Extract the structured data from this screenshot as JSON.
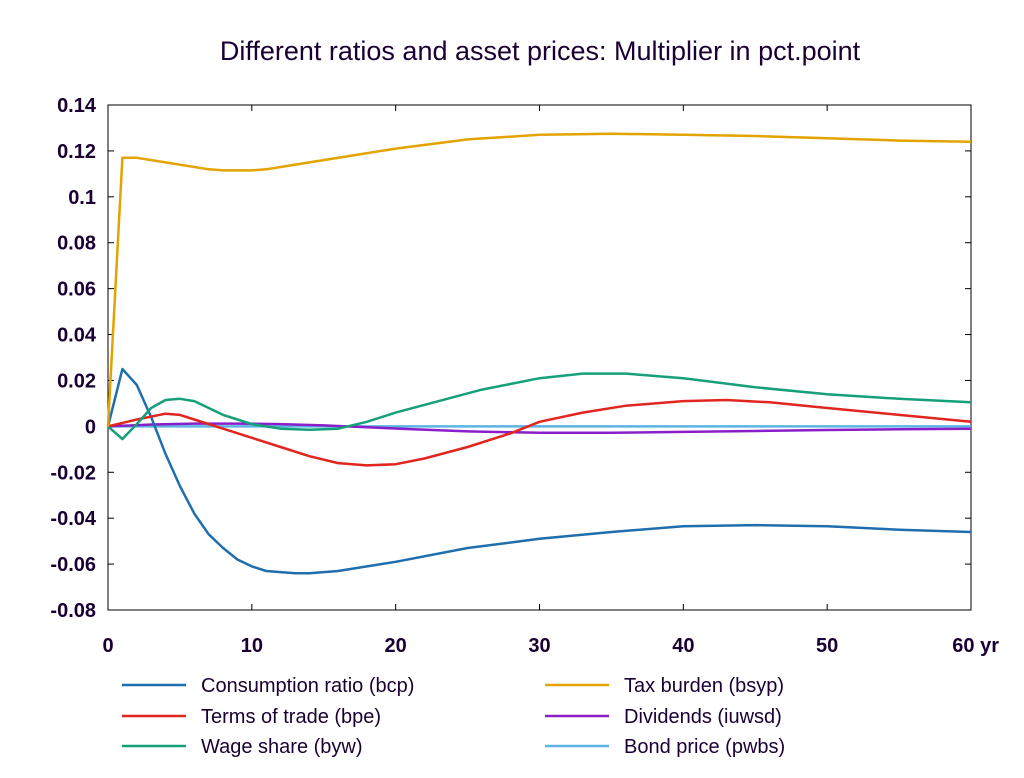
{
  "chart_data": {
    "type": "line",
    "title": "Different ratios and asset prices: Multiplier in pct.point",
    "xlabel": "",
    "ylabel": "",
    "xlim": [
      0,
      60
    ],
    "ylim": [
      -0.08,
      0.14
    ],
    "x_ticks": [
      0,
      10,
      20,
      30,
      40,
      50,
      60
    ],
    "x_tick_labels": [
      "0",
      "10",
      "20",
      "30",
      "40",
      "50",
      "60 yr"
    ],
    "y_ticks": [
      -0.08,
      -0.06,
      -0.04,
      -0.02,
      0,
      0.02,
      0.04,
      0.06,
      0.08,
      0.1,
      0.12,
      0.14
    ],
    "y_tick_labels": [
      "-0.08",
      "-0.06",
      "-0.04",
      "-0.02",
      "0",
      "0.02",
      "0.04",
      "0.06",
      "0.08",
      "0.1",
      "0.12",
      "0.14"
    ],
    "grid": false,
    "legend_position": "bottom",
    "series": [
      {
        "name": "Consumption ratio (bcp)",
        "color": "#1f6fae",
        "points": [
          [
            0,
            0
          ],
          [
            1,
            0.025
          ],
          [
            2,
            0.018
          ],
          [
            3,
            0.004
          ],
          [
            4,
            -0.012
          ],
          [
            5,
            -0.026
          ],
          [
            6,
            -0.038
          ],
          [
            7,
            -0.047
          ],
          [
            8,
            -0.053
          ],
          [
            9,
            -0.058
          ],
          [
            10,
            -0.061
          ],
          [
            11,
            -0.063
          ],
          [
            12,
            -0.0635
          ],
          [
            13,
            -0.064
          ],
          [
            14,
            -0.064
          ],
          [
            16,
            -0.063
          ],
          [
            18,
            -0.061
          ],
          [
            20,
            -0.059
          ],
          [
            25,
            -0.053
          ],
          [
            30,
            -0.049
          ],
          [
            35,
            -0.046
          ],
          [
            40,
            -0.0435
          ],
          [
            45,
            -0.043
          ],
          [
            50,
            -0.0435
          ],
          [
            55,
            -0.045
          ],
          [
            60,
            -0.046
          ]
        ]
      },
      {
        "name": "Terms of trade (bpe)",
        "color": "#e0261f",
        "points": [
          [
            0,
            0
          ],
          [
            2,
            0.003
          ],
          [
            4,
            0.0055
          ],
          [
            5,
            0.005
          ],
          [
            6,
            0.003
          ],
          [
            8,
            -0.001
          ],
          [
            10,
            -0.005
          ],
          [
            12,
            -0.009
          ],
          [
            14,
            -0.013
          ],
          [
            16,
            -0.016
          ],
          [
            18,
            -0.017
          ],
          [
            20,
            -0.0165
          ],
          [
            22,
            -0.014
          ],
          [
            25,
            -0.009
          ],
          [
            28,
            -0.003
          ],
          [
            30,
            0.002
          ],
          [
            33,
            0.006
          ],
          [
            36,
            0.009
          ],
          [
            40,
            0.011
          ],
          [
            43,
            0.0115
          ],
          [
            46,
            0.0105
          ],
          [
            50,
            0.008
          ],
          [
            55,
            0.005
          ],
          [
            60,
            0.002
          ]
        ]
      },
      {
        "name": "Wage share (byw)",
        "color": "#16a07a",
        "points": [
          [
            0,
            0
          ],
          [
            1,
            -0.0055
          ],
          [
            2,
            0.001
          ],
          [
            3,
            0.008
          ],
          [
            4,
            0.0115
          ],
          [
            5,
            0.012
          ],
          [
            6,
            0.011
          ],
          [
            7,
            0.008
          ],
          [
            8,
            0.005
          ],
          [
            9,
            0.003
          ],
          [
            10,
            0.001
          ],
          [
            12,
            -0.001
          ],
          [
            14,
            -0.0015
          ],
          [
            16,
            -0.001
          ],
          [
            18,
            0.002
          ],
          [
            20,
            0.006
          ],
          [
            23,
            0.011
          ],
          [
            26,
            0.016
          ],
          [
            30,
            0.021
          ],
          [
            33,
            0.023
          ],
          [
            36,
            0.023
          ],
          [
            40,
            0.021
          ],
          [
            45,
            0.017
          ],
          [
            50,
            0.014
          ],
          [
            55,
            0.012
          ],
          [
            60,
            0.0105
          ]
        ]
      },
      {
        "name": "Tax burden (bsyp)",
        "color": "#e3a300",
        "points": [
          [
            0,
            0
          ],
          [
            1,
            0.117
          ],
          [
            2,
            0.117
          ],
          [
            3,
            0.116
          ],
          [
            4,
            0.115
          ],
          [
            5,
            0.114
          ],
          [
            6,
            0.113
          ],
          [
            7,
            0.112
          ],
          [
            8,
            0.1115
          ],
          [
            9,
            0.1115
          ],
          [
            10,
            0.1115
          ],
          [
            11,
            0.112
          ],
          [
            12,
            0.113
          ],
          [
            14,
            0.115
          ],
          [
            17,
            0.118
          ],
          [
            20,
            0.121
          ],
          [
            25,
            0.125
          ],
          [
            30,
            0.127
          ],
          [
            35,
            0.1275
          ],
          [
            40,
            0.127
          ],
          [
            45,
            0.1265
          ],
          [
            50,
            0.1255
          ],
          [
            55,
            0.1245
          ],
          [
            60,
            0.124
          ]
        ]
      },
      {
        "name": "Dividends (iuwsd)",
        "color": "#8a1fc9",
        "points": [
          [
            0,
            0
          ],
          [
            3,
            0.0008
          ],
          [
            6,
            0.0012
          ],
          [
            9,
            0.0012
          ],
          [
            12,
            0.001
          ],
          [
            15,
            0.0004
          ],
          [
            18,
            -0.0004
          ],
          [
            21,
            -0.0012
          ],
          [
            25,
            -0.0022
          ],
          [
            30,
            -0.0028
          ],
          [
            35,
            -0.0028
          ],
          [
            40,
            -0.0024
          ],
          [
            45,
            -0.002
          ],
          [
            50,
            -0.0016
          ],
          [
            55,
            -0.0013
          ],
          [
            60,
            -0.001
          ]
        ]
      },
      {
        "name": "Bond price (pwbs)",
        "color": "#5bb5e3",
        "points": [
          [
            0,
            0
          ],
          [
            60,
            0
          ]
        ]
      }
    ]
  }
}
